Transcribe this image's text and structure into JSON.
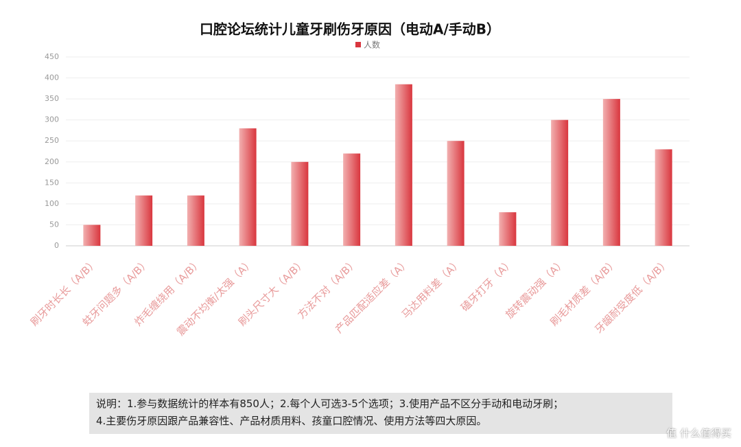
{
  "chart_data": {
    "type": "bar",
    "title": "口腔论坛统计儿童牙刷伤牙原因（电动A/手动B）",
    "categories": [
      "刷牙时长长（A/B）",
      "蛀牙问题多（A/B）",
      "炸毛缠绕用（A/B）",
      "震动不均衡/太强（A）",
      "刷头尺寸大（A/B）",
      "方法不对（A/B）",
      "产品匹配适应差（A）",
      "马达用料差（A）",
      "磕牙打牙（A）",
      "旋转震动强（A）",
      "刷毛材质差（A/B）",
      "牙龈耐受度低（A/B）"
    ],
    "series": [
      {
        "name": "人数",
        "color": "#d9363e",
        "values": [
          50,
          120,
          120,
          280,
          200,
          220,
          385,
          250,
          80,
          300,
          350,
          230
        ]
      }
    ],
    "ylim": [
      0,
      450
    ],
    "yticks": [
      0,
      50,
      100,
      150,
      200,
      250,
      300,
      350,
      400,
      450
    ],
    "grid": true
  },
  "notes": [
    "说明：1.参与数据统计的样本有850人；2.每个人可选3-5个选项；3.使用产品不区分手动和电动牙刷；",
    "4.主要伤牙原因跟产品兼容性、产品材质用料、孩童口腔情况、使用方法等四大原因。"
  ],
  "watermark": "值 什么值得买"
}
